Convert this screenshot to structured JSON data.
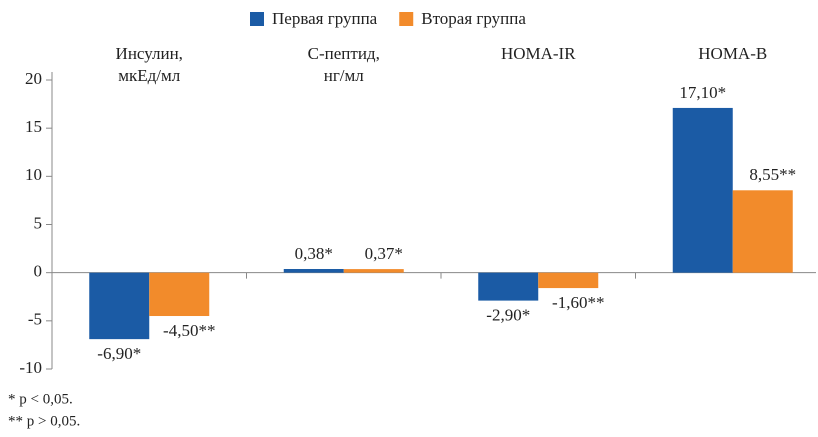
{
  "chart_data": {
    "type": "bar",
    "categories": [
      [
        "Инсулин,",
        "мкЕд/мл"
      ],
      [
        "С-пептид,",
        "нг/мл"
      ],
      [
        "HOMA-IR"
      ],
      [
        "HOMA-B"
      ]
    ],
    "series": [
      {
        "name": "Первая группа",
        "color": "#1b5ba5",
        "values": [
          -6.9,
          0.38,
          -2.9,
          17.1
        ],
        "value_labels": [
          "-6,90*",
          "0,38*",
          "-2,90*",
          "17,10*"
        ]
      },
      {
        "name": "Вторая группа",
        "color": "#f28b2b",
        "values": [
          -4.5,
          0.37,
          -1.6,
          8.55
        ],
        "value_labels": [
          "-4,50**",
          "0,37*",
          "-1,60**",
          "8,55**"
        ]
      }
    ],
    "ylim": [
      -10,
      20
    ],
    "yticks": [
      -10,
      -5,
      0,
      5,
      10,
      15,
      20
    ],
    "legend": "top",
    "notes": [
      "* p < 0,05.",
      "** p > 0,05."
    ]
  }
}
